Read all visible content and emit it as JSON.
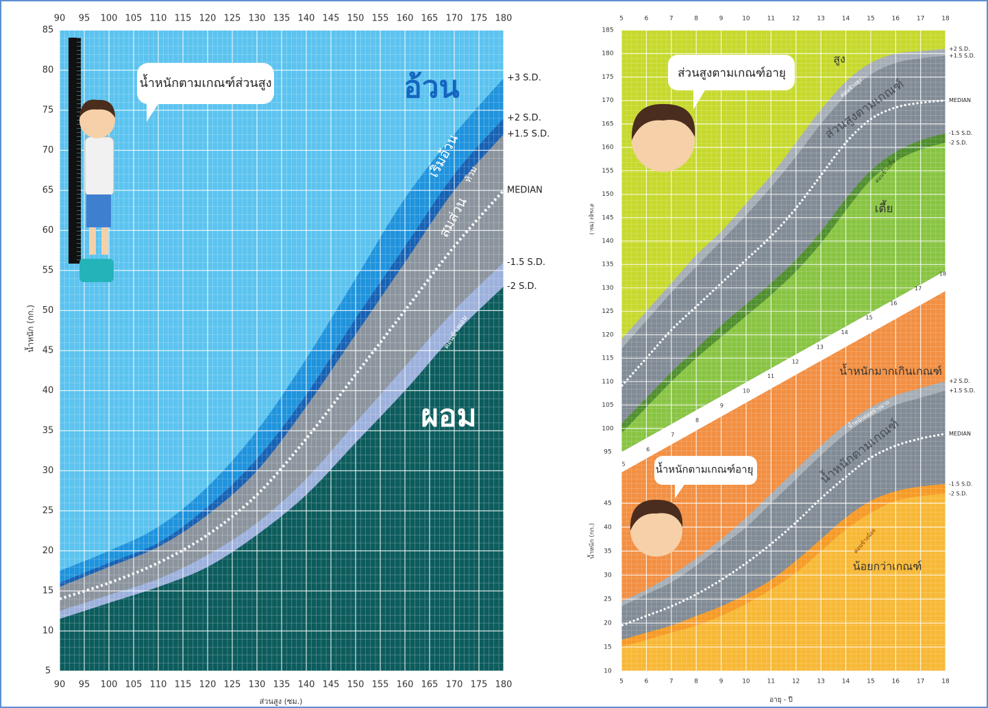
{
  "chart_data": [
    {
      "type": "area",
      "x": [
        90,
        100,
        110,
        120,
        130,
        140,
        150,
        160,
        170,
        180
      ],
      "xlim": [
        90,
        180
      ],
      "xticks": [
        90,
        95,
        100,
        105,
        110,
        115,
        120,
        125,
        130,
        135,
        140,
        145,
        150,
        155,
        160,
        165,
        170,
        175,
        180
      ],
      "ylim": [
        5,
        85
      ],
      "yticks": [
        5,
        10,
        15,
        20,
        25,
        30,
        35,
        40,
        45,
        50,
        55,
        60,
        65,
        70,
        75,
        80,
        85
      ],
      "xlabel": "ส่วนสูง (ซม.)",
      "ylabel": "น้ำหนัก (กก.)",
      "background": "#5cc3ef",
      "grid": true,
      "series": [
        {
          "name": "+3 S.D.",
          "color": "#1f93dc",
          "values": [
            17.5,
            20,
            23,
            28,
            35,
            44,
            54,
            64,
            72,
            79
          ]
        },
        {
          "name": "+2 S.D.",
          "color": "#1761b3",
          "values": [
            16,
            18.5,
            21,
            25.5,
            31.5,
            39.5,
            49,
            58,
            67,
            74
          ]
        },
        {
          "name": "+1.5 S.D.",
          "color": "#8b949d",
          "values": [
            15.5,
            18,
            20.5,
            24.5,
            30,
            38,
            47,
            56,
            65,
            72
          ]
        },
        {
          "name": "MEDIAN",
          "color": "#8b949d",
          "line_style": "dotted",
          "values": [
            14,
            16,
            18.5,
            22,
            27,
            34,
            42,
            50,
            58,
            65
          ]
        },
        {
          "name": "-1.5 S.D.",
          "color": "#9db1dc",
          "values": [
            12.5,
            14.5,
            16.5,
            19.5,
            23.5,
            29,
            36,
            43,
            50,
            56
          ]
        },
        {
          "name": "-2 S.D.",
          "color": "#0d5c5d",
          "values": [
            11.5,
            13.5,
            15.5,
            18,
            22,
            27,
            33.5,
            40,
            47,
            53
          ]
        }
      ],
      "annotations": [
        "น้ำหนักตามเกณฑ์ส่วนสูง",
        "อ้วน",
        "เริ่มอ้วน",
        "ท้วม",
        "สมส่วน",
        "ค่อนข้างผอม",
        "ผอม"
      ]
    },
    {
      "type": "area",
      "x": [
        5,
        6,
        7,
        8,
        9,
        10,
        11,
        12,
        13,
        14,
        15,
        16,
        17,
        18
      ],
      "xlim": [
        5,
        18
      ],
      "xticks": [
        5,
        6,
        7,
        8,
        9,
        10,
        11,
        12,
        13,
        14,
        15,
        16,
        17,
        18
      ],
      "ylim": [
        95,
        185
      ],
      "yticks": [
        95,
        100,
        105,
        110,
        115,
        120,
        125,
        130,
        135,
        140,
        145,
        150,
        155,
        160,
        165,
        170,
        175,
        180,
        185
      ],
      "ylabel": "ส่วนสูง (ซม.)",
      "background": "#c6d92c",
      "grid": true,
      "series": [
        {
          "name": "+2 S.D.",
          "color": "#a5adb5",
          "values": [
            119,
            125,
            131,
            137,
            142,
            148,
            154,
            161,
            168,
            174,
            178,
            180,
            180.5,
            181
          ]
        },
        {
          "name": "+1.5 S.D.",
          "color": "#818b95",
          "values": [
            117,
            123,
            129,
            134.5,
            140,
            145.5,
            151.5,
            158,
            165,
            171,
            175.5,
            178,
            179,
            179.5
          ]
        },
        {
          "name": "MEDIAN",
          "color": "#818b95",
          "line_style": "dotted",
          "values": [
            109,
            115,
            121,
            126,
            131,
            136,
            141,
            147,
            154,
            161,
            166,
            168.5,
            169.5,
            170
          ]
        },
        {
          "name": "-1.5 S.D.",
          "color": "#4f8e2d",
          "values": [
            101,
            106.5,
            112,
            117,
            122,
            126.5,
            131,
            136,
            142,
            149,
            155,
            159,
            161.5,
            163
          ]
        },
        {
          "name": "-2 S.D.",
          "color": "#88c442",
          "values": [
            99,
            104.5,
            110,
            115,
            119.5,
            124,
            128.5,
            133.5,
            139.5,
            146.5,
            153,
            157,
            159.5,
            161
          ]
        }
      ],
      "annotations": [
        "ส่วนสูงตามเกณฑ์อายุ",
        "สูง",
        "ค่อนข้างสูง",
        "ส่วนสูงตามเกณฑ์",
        "ค่อนข้างเตี้ย",
        "เตี้ย"
      ]
    },
    {
      "type": "area",
      "x": [
        5,
        6,
        7,
        8,
        9,
        10,
        11,
        12,
        13,
        14,
        15,
        16,
        17,
        18
      ],
      "xlim": [
        5,
        18
      ],
      "xticks": [
        5,
        6,
        7,
        8,
        9,
        10,
        11,
        12,
        13,
        14,
        15,
        16,
        17,
        18
      ],
      "ylim": [
        10,
        90
      ],
      "yticks": [
        10,
        15,
        20,
        25,
        30,
        35,
        40,
        45
      ],
      "xlabel": "อายุ - ปี",
      "ylabel": "น้ำหนัก (กก.)",
      "background": "#f28f42",
      "grid": true,
      "series": [
        {
          "name": "+2 S.D.",
          "color": "#a5adb5",
          "values": [
            24.5,
            27,
            30,
            33.5,
            37.5,
            42,
            47,
            52,
            57,
            61.5,
            65,
            67.5,
            69,
            70.5
          ]
        },
        {
          "name": "+1.5 S.D.",
          "color": "#818b95",
          "values": [
            23.5,
            26,
            28.5,
            32,
            36,
            40,
            45,
            50,
            55,
            59.5,
            63,
            65.5,
            67,
            68.5
          ]
        },
        {
          "name": "MEDIAN",
          "color": "#818b95",
          "line_style": "dotted",
          "values": [
            19.5,
            21.5,
            23.5,
            26,
            29,
            32.5,
            36.5,
            41,
            46,
            50.5,
            54.5,
            57,
            58.5,
            59.5
          ]
        },
        {
          "name": "-1.5 S.D.",
          "color": "#f69a25",
          "values": [
            16.5,
            18,
            19.5,
            21.5,
            23.5,
            26,
            29,
            33,
            37.5,
            42,
            45.5,
            47.5,
            48.5,
            49
          ]
        },
        {
          "name": "-2 S.D.",
          "color": "#f7b835",
          "values": [
            15,
            16.5,
            18,
            19.5,
            21.5,
            24,
            27,
            30.5,
            35,
            39.5,
            43,
            45.5,
            46.5,
            47
          ]
        }
      ],
      "annotations": [
        "น้ำหนักตามเกณฑ์อายุ",
        "น้ำหนักมากเกินเกณฑ์",
        "น้ำหนักค่อนข้างมาก",
        "น้ำหนักตามเกณฑ์",
        "ค่อนข้างน้อย",
        "น้อยกว่าเกณฑ์"
      ]
    }
  ]
}
